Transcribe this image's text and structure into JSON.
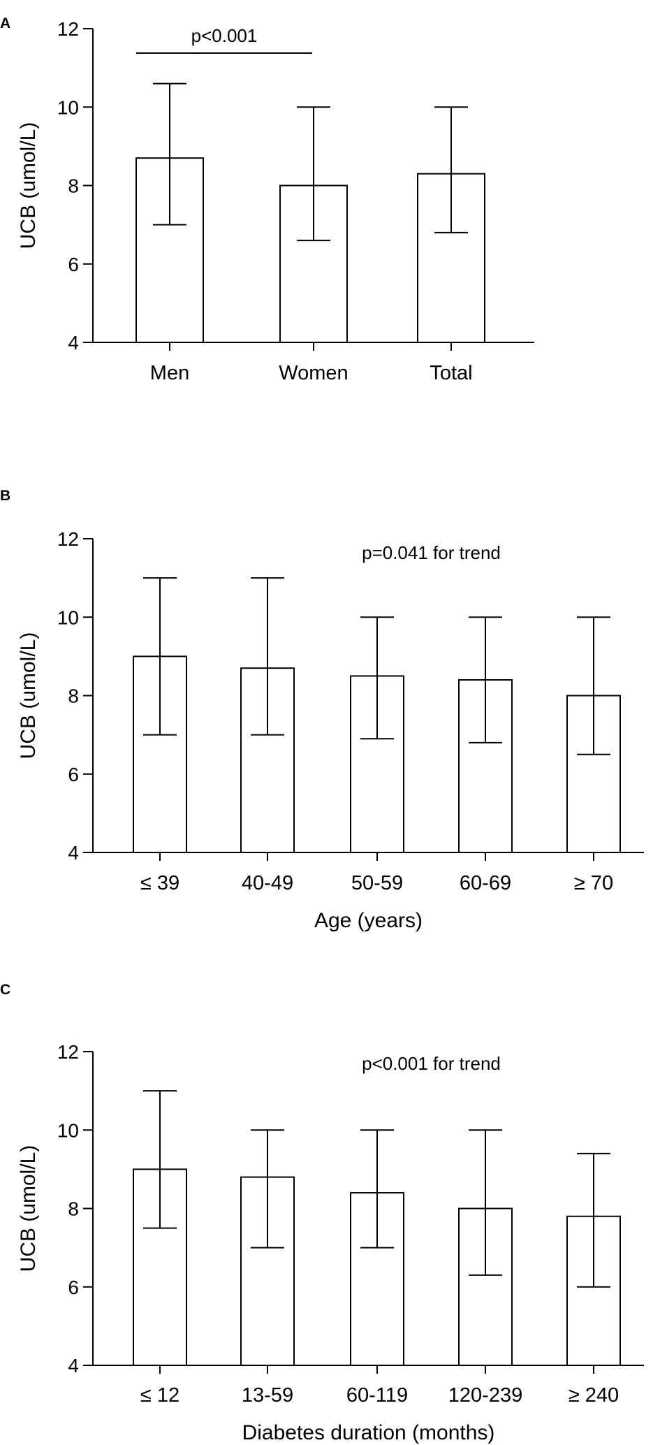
{
  "figure": {
    "panels": [
      "A",
      "B",
      "C"
    ]
  },
  "chart_data": [
    {
      "panel": "A",
      "type": "bar",
      "title": "",
      "xlabel": "",
      "ylabel": "UCB (umol/L)",
      "ylim": [
        4,
        12
      ],
      "yticks": [
        4,
        6,
        8,
        10,
        12
      ],
      "categories": [
        "Men",
        "Women",
        "Total"
      ],
      "values": [
        8.7,
        8.0,
        8.3
      ],
      "error_low": [
        7.0,
        6.6,
        6.8
      ],
      "error_high": [
        10.6,
        10.0,
        10.0
      ],
      "annotation": "p<0.001",
      "bracket": [
        0,
        1
      ],
      "colors": {
        "bar_fill": "#ffffff",
        "stroke": "#000000"
      }
    },
    {
      "panel": "B",
      "type": "bar",
      "title": "",
      "xlabel": "Age (years)",
      "ylabel": "UCB (umol/L)",
      "ylim": [
        4,
        12
      ],
      "yticks": [
        4,
        6,
        8,
        10,
        12
      ],
      "categories": [
        "≤ 39",
        "40-49",
        "50-59",
        "60-69",
        "≥ 70"
      ],
      "values": [
        9.0,
        8.7,
        8.5,
        8.4,
        8.0
      ],
      "error_low": [
        7.0,
        7.0,
        6.9,
        6.8,
        6.5
      ],
      "error_high": [
        11.0,
        11.0,
        10.0,
        10.0,
        10.0
      ],
      "annotation": "p=0.041 for trend",
      "colors": {
        "bar_fill": "#ffffff",
        "stroke": "#000000"
      }
    },
    {
      "panel": "C",
      "type": "bar",
      "title": "",
      "xlabel": "Diabetes duration (months)",
      "ylabel": "UCB (umol/L)",
      "ylim": [
        4,
        12
      ],
      "yticks": [
        4,
        6,
        8,
        10,
        12
      ],
      "categories": [
        "≤ 12",
        "13-59",
        "60-119",
        "120-239",
        "≥ 240"
      ],
      "values": [
        9.0,
        8.8,
        8.4,
        8.0,
        7.8
      ],
      "error_low": [
        7.5,
        7.0,
        7.0,
        6.3,
        6.0
      ],
      "error_high": [
        11.0,
        10.0,
        10.0,
        10.0,
        9.4
      ],
      "annotation": "p<0.001 for trend",
      "colors": {
        "bar_fill": "#ffffff",
        "stroke": "#000000"
      }
    }
  ]
}
